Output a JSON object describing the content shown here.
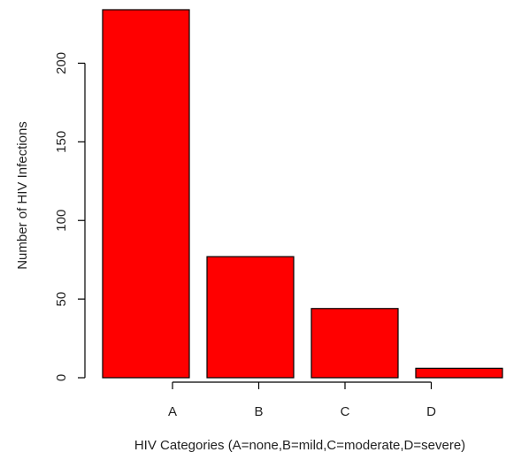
{
  "chart_data": {
    "type": "bar",
    "categories": [
      "A",
      "B",
      "C",
      "D"
    ],
    "values": [
      234,
      77,
      44,
      6
    ],
    "title": "",
    "xlabel": "HIV Categories (A=none,B=mild,C=moderate,D=severe)",
    "ylabel": "Number of HIV Infections",
    "ylim": [
      0,
      234
    ],
    "yticks": [
      0,
      50,
      100,
      150,
      200
    ],
    "grid": false,
    "bar_color": "#ff0000",
    "bar_edge_color": "#000000"
  }
}
